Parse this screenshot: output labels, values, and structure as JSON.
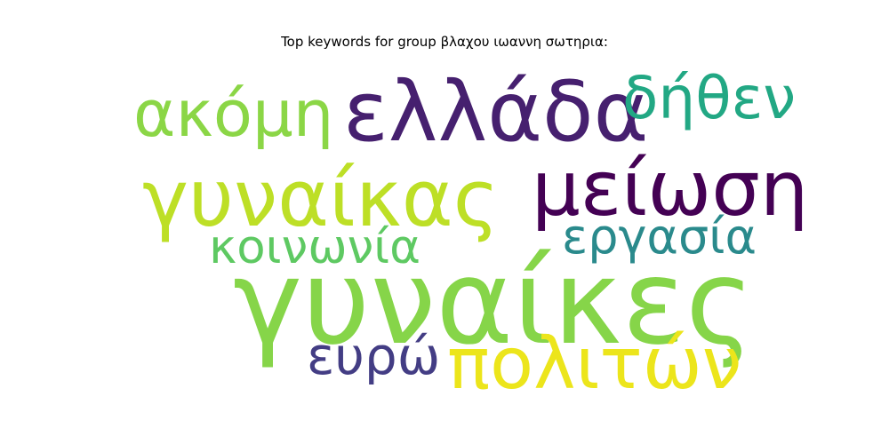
{
  "title": "Top keywords for group βλαχου ιωαννη σωτηρια:",
  "words": [
    {
      "id": "gynaikes",
      "text": "γυναίκες",
      "color": "#86d549"
    },
    {
      "id": "gynaikas",
      "text": "γυναίκας",
      "color": "#bddf26"
    },
    {
      "id": "meiosi",
      "text": "μείωση",
      "color": "#440154"
    },
    {
      "id": "ellada",
      "text": "ελλάδα",
      "color": "#46206f"
    },
    {
      "id": "politon",
      "text": "πολιτών",
      "color": "#ece51b"
    },
    {
      "id": "akomi",
      "text": "ακόμη",
      "color": "#8bd646"
    },
    {
      "id": "dithen",
      "text": "δήθεν",
      "color": "#22a884"
    },
    {
      "id": "ergasia",
      "text": "εργασία",
      "color": "#2a8a8c"
    },
    {
      "id": "koinonia",
      "text": "κοινωνία",
      "color": "#5ec962"
    },
    {
      "id": "evro",
      "text": "ευρώ",
      "color": "#433d84"
    }
  ]
}
